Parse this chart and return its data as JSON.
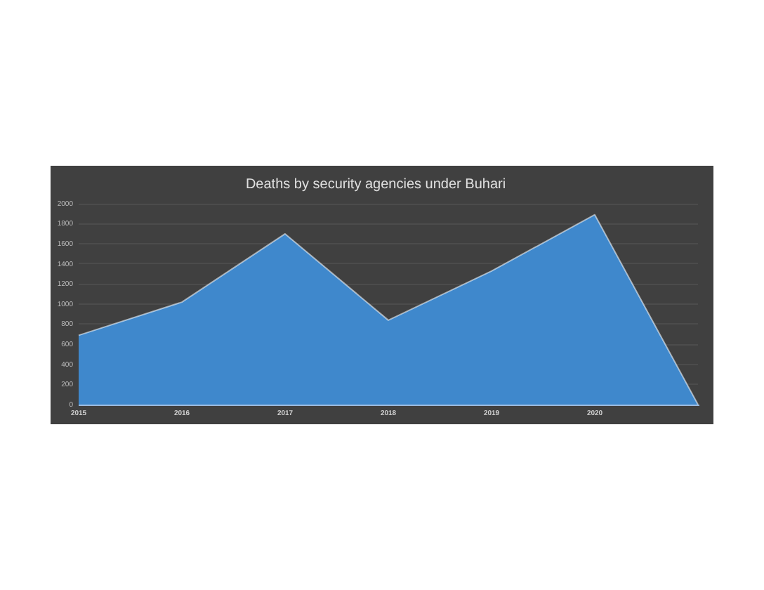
{
  "chart_data": {
    "type": "area",
    "title": "Deaths by security agencies under Buhari",
    "categories": [
      "2015",
      "2016",
      "2017",
      "2018",
      "2019",
      "2020",
      null
    ],
    "values": [
      690,
      1020,
      1700,
      840,
      1330,
      1890,
      0
    ],
    "color": "#3f88cc",
    "ylim": [
      0,
      2000
    ],
    "yticks": [
      0,
      200,
      400,
      600,
      800,
      1000,
      1200,
      1400,
      1600,
      1800,
      2000
    ],
    "grid": "y"
  }
}
